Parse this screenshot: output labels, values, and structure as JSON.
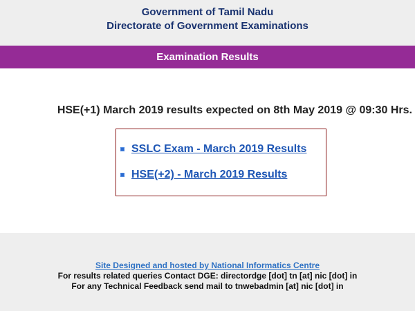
{
  "header": {
    "line1": "Government of Tamil Nadu",
    "line2": "Directorate of Government Examinations"
  },
  "banner": {
    "title": "Examination Results"
  },
  "main": {
    "notice": "HSE(+1) March 2019 results expected on 8th May 2019 @ 09:30 Hrs.",
    "results": [
      {
        "label": "SSLC Exam - March 2019 Results",
        "icon": "square-bullet-icon"
      },
      {
        "label": "HSE(+2) - March 2019 Results",
        "icon": "square-bullet-icon"
      }
    ]
  },
  "footer": {
    "credit_link": "Site Designed and hosted by National Informatics Centre",
    "contact": "For results related queries Contact DGE:  directordge [dot] tn [at] nic [dot] in",
    "feedback": "For any Technical Feedback send mail to tnwebadmin [at] nic [dot] in"
  },
  "colors": {
    "banner": "#952b96",
    "heading": "#1a3370",
    "link": "#1e56b5",
    "box_border": "#8b1a1a"
  }
}
